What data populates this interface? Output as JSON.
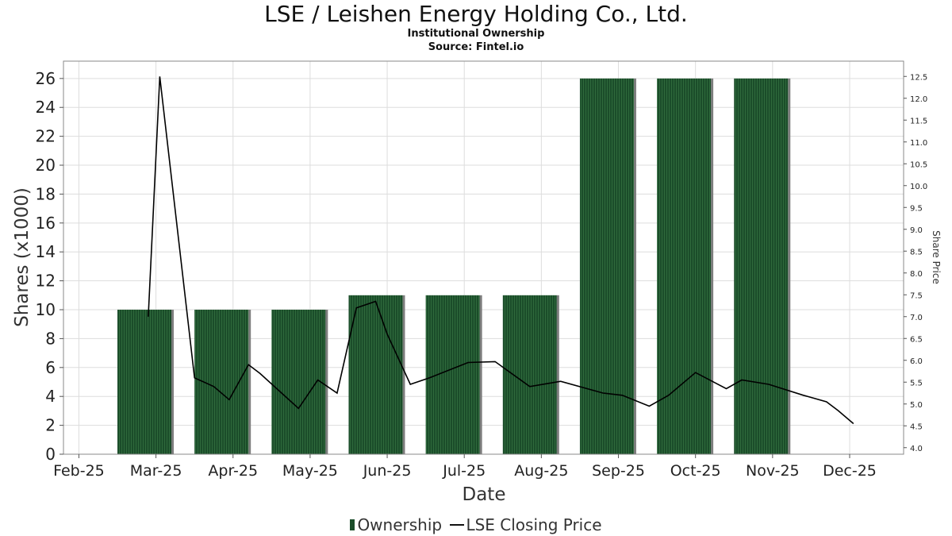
{
  "title": "LSE / Leishen Energy Holding Co., Ltd.",
  "subtitle": "Institutional Ownership",
  "source": "Source: Fintel.io",
  "legend": {
    "ownership": "Ownership",
    "price": "LSE Closing Price"
  },
  "colors": {
    "bar": "#1b4d2a",
    "bar_shadow": "#7d7d7d",
    "line": "#000000",
    "grid": "#dddddd"
  },
  "chart_data": {
    "type": "bar",
    "title": "LSE / Leishen Energy Holding Co., Ltd.",
    "xlabel": "Date",
    "ylabel": "Shares (x1000)",
    "y2label": "Share Price",
    "ylim": [
      0,
      27.2
    ],
    "y2lim": [
      3.85,
      12.85
    ],
    "yticks": [
      0,
      2,
      4,
      6,
      8,
      10,
      12,
      14,
      16,
      18,
      20,
      22,
      24,
      26
    ],
    "y2ticks": [
      "4.0",
      "4.5",
      "5.0",
      "5.5",
      "6.0",
      "6.5",
      "7.0",
      "7.5",
      "8.0",
      "8.5",
      "9.0",
      "9.5",
      "10.0",
      "10.5",
      "11.0",
      "11.5",
      "12.0",
      "12.5"
    ],
    "xticks": [
      "Feb-25",
      "Mar-25",
      "Apr-25",
      "May-25",
      "Jun-25",
      "Jul-25",
      "Aug-25",
      "Sep-25",
      "Oct-25",
      "Nov-25",
      "Dec-25"
    ],
    "xrange": [
      -0.2,
      10.7
    ],
    "series": [
      {
        "name": "Ownership",
        "type": "bar",
        "axis": "left",
        "bars": [
          {
            "start": 0.5,
            "end": 1.2,
            "value": 10
          },
          {
            "start": 1.5,
            "end": 2.2,
            "value": 10
          },
          {
            "start": 2.5,
            "end": 3.2,
            "value": 10
          },
          {
            "start": 3.5,
            "end": 4.2,
            "value": 11
          },
          {
            "start": 4.5,
            "end": 5.2,
            "value": 11
          },
          {
            "start": 5.5,
            "end": 6.2,
            "value": 11
          },
          {
            "start": 6.5,
            "end": 7.2,
            "value": 26
          },
          {
            "start": 7.5,
            "end": 8.2,
            "value": 26
          },
          {
            "start": 8.5,
            "end": 9.2,
            "value": 26
          }
        ]
      },
      {
        "name": "LSE Closing Price",
        "type": "line",
        "axis": "right",
        "x": [
          0.9,
          1.05,
          1.5,
          1.75,
          1.95,
          2.2,
          2.35,
          2.85,
          3.1,
          3.35,
          3.6,
          3.85,
          4.0,
          4.3,
          4.55,
          5.05,
          5.4,
          5.85,
          6.25,
          6.8,
          7.05,
          7.4,
          7.65,
          8.0,
          8.4,
          8.6,
          8.95,
          9.4,
          9.7,
          9.85,
          10.05
        ],
        "values": [
          7.0,
          12.5,
          5.6,
          5.4,
          5.1,
          5.9,
          5.7,
          4.9,
          5.55,
          5.25,
          7.2,
          7.35,
          6.6,
          5.45,
          5.6,
          5.95,
          5.97,
          5.4,
          5.52,
          5.25,
          5.2,
          4.95,
          5.2,
          5.72,
          5.35,
          5.55,
          5.45,
          5.2,
          5.05,
          4.85,
          4.55
        ]
      }
    ]
  }
}
